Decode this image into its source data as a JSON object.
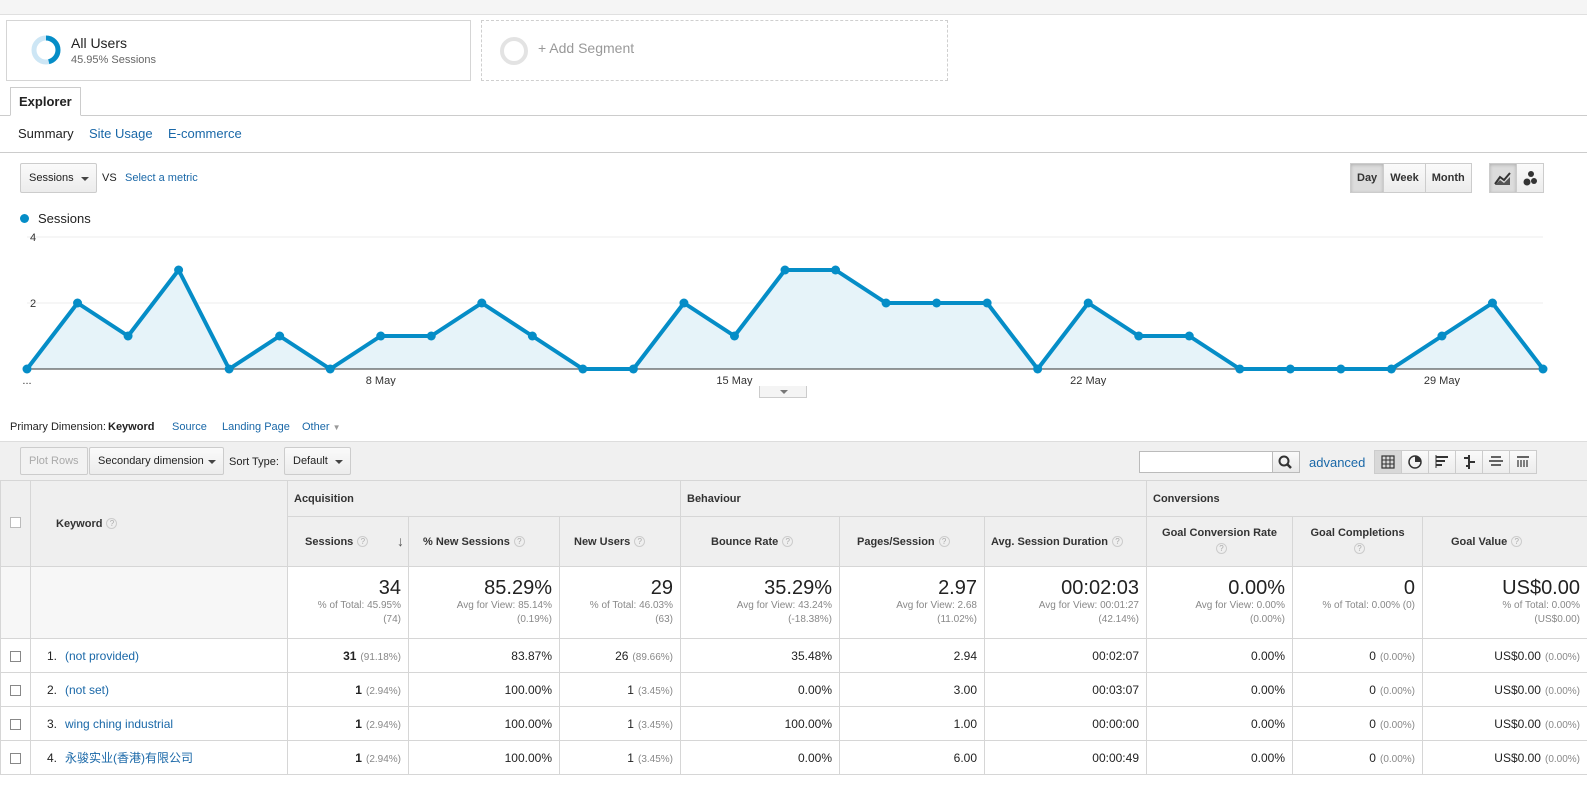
{
  "segments": {
    "all_users": {
      "title": "All Users",
      "subtitle": "45.95% Sessions",
      "ring_fraction": 0.4595
    },
    "add_label": "+ Add Segment"
  },
  "tabs": {
    "explorer": "Explorer"
  },
  "subtabs": [
    "Summary",
    "Site Usage",
    "E-commerce"
  ],
  "chart_controls": {
    "metric": "Sessions",
    "vs": "VS",
    "select_metric": "Select a metric",
    "periods": [
      "Day",
      "Week",
      "Month"
    ],
    "active_period": "Day"
  },
  "chart_data": {
    "type": "area",
    "series": [
      {
        "name": "Sessions",
        "color": "#058dc7",
        "values": [
          0,
          2,
          1,
          3,
          0,
          1,
          0,
          1,
          1,
          2,
          1,
          0,
          0,
          2,
          1,
          3,
          3,
          2,
          2,
          2,
          0,
          2,
          1,
          1,
          0,
          0,
          0,
          0,
          1,
          2,
          0
        ]
      }
    ],
    "x_tick_labels": [
      {
        "index": 0,
        "label": "..."
      },
      {
        "index": 7,
        "label": "8 May"
      },
      {
        "index": 14,
        "label": "15 May"
      },
      {
        "index": 21,
        "label": "22 May"
      },
      {
        "index": 28,
        "label": "29 May"
      }
    ],
    "y_ticks": [
      2,
      4
    ],
    "ylim": [
      0,
      4
    ],
    "grid": true,
    "legend": "top-left"
  },
  "dimension_bar": {
    "label": "Primary Dimension:",
    "options": [
      "Keyword",
      "Source",
      "Landing Page",
      "Other"
    ],
    "active": "Keyword"
  },
  "toolbar": {
    "plot_rows": "Plot Rows",
    "secondary_dimension": "Secondary dimension",
    "sort_type_label": "Sort Type:",
    "sort_type_value": "Default",
    "advanced": "advanced"
  },
  "table": {
    "first_col": "Keyword",
    "groups": [
      "Acquisition",
      "Behaviour",
      "Conversions"
    ],
    "columns": [
      "Sessions",
      "% New Sessions",
      "New Users",
      "Bounce Rate",
      "Pages/Session",
      "Avg. Session Duration",
      "Goal Conversion Rate",
      "Goal Completions",
      "Goal Value"
    ],
    "totals": [
      {
        "value": "34",
        "sub1": "% of Total: 45.95%",
        "sub2": "(74)"
      },
      {
        "value": "85.29%",
        "sub1": "Avg for View: 85.14%",
        "sub2": "(0.19%)"
      },
      {
        "value": "29",
        "sub1": "% of Total: 46.03%",
        "sub2": "(63)"
      },
      {
        "value": "35.29%",
        "sub1": "Avg for View: 43.24%",
        "sub2": "(-18.38%)"
      },
      {
        "value": "2.97",
        "sub1": "Avg for View: 2.68",
        "sub2": "(11.02%)"
      },
      {
        "value": "00:02:03",
        "sub1": "Avg for View: 00:01:27",
        "sub2": "(42.14%)"
      },
      {
        "value": "0.00%",
        "sub1": "Avg for View: 0.00%",
        "sub2": "(0.00%)"
      },
      {
        "value": "0",
        "sub1": "% of Total: 0.00% (0)",
        "sub2": ""
      },
      {
        "value": "US$0.00",
        "sub1": "% of Total: 0.00%",
        "sub2": "(US$0.00)"
      }
    ],
    "rows": [
      {
        "num": "1.",
        "keyword": "(not provided)",
        "sessions": "31",
        "sessions_pct": "(91.18%)",
        "new_sessions": "83.87%",
        "new_users": "26",
        "new_users_pct": "(89.66%)",
        "bounce": "35.48%",
        "pages": "2.94",
        "duration": "00:02:07",
        "gcr": "0.00%",
        "gc": "0",
        "gc_pct": "(0.00%)",
        "gv": "US$0.00",
        "gv_pct": "(0.00%)"
      },
      {
        "num": "2.",
        "keyword": "(not set)",
        "sessions": "1",
        "sessions_pct": "(2.94%)",
        "new_sessions": "100.00%",
        "new_users": "1",
        "new_users_pct": "(3.45%)",
        "bounce": "0.00%",
        "pages": "3.00",
        "duration": "00:03:07",
        "gcr": "0.00%",
        "gc": "0",
        "gc_pct": "(0.00%)",
        "gv": "US$0.00",
        "gv_pct": "(0.00%)"
      },
      {
        "num": "3.",
        "keyword": "wing ching industrial",
        "sessions": "1",
        "sessions_pct": "(2.94%)",
        "new_sessions": "100.00%",
        "new_users": "1",
        "new_users_pct": "(3.45%)",
        "bounce": "100.00%",
        "pages": "1.00",
        "duration": "00:00:00",
        "gcr": "0.00%",
        "gc": "0",
        "gc_pct": "(0.00%)",
        "gv": "US$0.00",
        "gv_pct": "(0.00%)"
      },
      {
        "num": "4.",
        "keyword": "永骏实业(香港)有限公司",
        "sessions": "1",
        "sessions_pct": "(2.94%)",
        "new_sessions": "100.00%",
        "new_users": "1",
        "new_users_pct": "(3.45%)",
        "bounce": "0.00%",
        "pages": "6.00",
        "duration": "00:00:49",
        "gcr": "0.00%",
        "gc": "0",
        "gc_pct": "(0.00%)",
        "gv": "US$0.00",
        "gv_pct": "(0.00%)"
      }
    ]
  }
}
